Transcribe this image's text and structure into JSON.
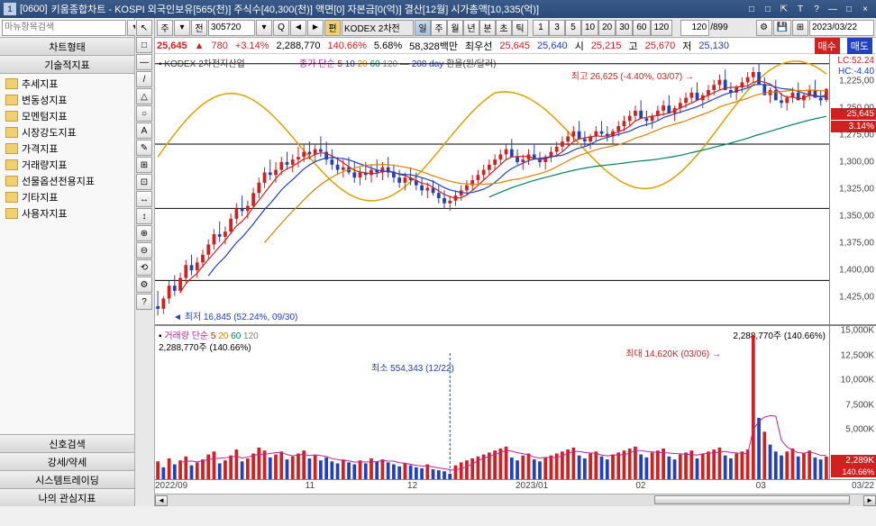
{
  "title": {
    "icon": "1",
    "code": "[0600]",
    "text": "키움종합차트 - KOSPI 외국인보유[565(천)] 주식수[40,300(천)] 액면[0] 자본금[0(억)] 결산[12월] 시가총액[10,335(억)]"
  },
  "wincontrols": [
    "□",
    "□",
    "⇱",
    "T",
    "?",
    "—",
    "□",
    "×"
  ],
  "sidebar": {
    "search_placeholder": "마뉴항목검색",
    "hdr1": "차트형태",
    "hdr2": "기술적지표",
    "items": [
      "추세지표",
      "변동성지표",
      "모멘텀지표",
      "시장강도지표",
      "가격지표",
      "거래량지표",
      "선물옵션전용지표",
      "기타지표",
      "사용자지표"
    ],
    "bottom": [
      "신호검색",
      "강세/약세",
      "시스템트레이딩",
      "나의 관심지표"
    ]
  },
  "toolbar": {
    "period": "주",
    "prev": "전",
    "code": "305720",
    "pt": "편",
    "name_short": "KODEX 2차전",
    "timeframes": [
      "일",
      "주",
      "월",
      "년",
      "분",
      "초",
      "틱"
    ],
    "tf_selected": 0,
    "ranges": [
      "1",
      "3",
      "5",
      "10",
      "20",
      "30",
      "60",
      "120"
    ],
    "count": "120",
    "total": "/899",
    "date": "2023/03/22"
  },
  "info": {
    "price": "25,645",
    "arrow": "▲",
    "change": "780",
    "pct": "+3.14%",
    "volume": "2,288,770",
    "ratio": "140.66%",
    "pct2": "5.68%",
    "amount": "58,328백만",
    "label_best": "최우선",
    "bid": "25,645",
    "ask": "25,640",
    "o_l": "시",
    "o": "25,215",
    "h_l": "고",
    "h": "25,670",
    "l_l": "저",
    "l": "25,130",
    "buy": "매수",
    "sell": "매도"
  },
  "main_chart": {
    "name": "KODEX 2차전지산업",
    "ma_label": "종가 단순",
    "ma": [
      "5",
      "10",
      "20",
      "60",
      "120"
    ],
    "ma_colors": [
      "#d02020",
      "#2040c0",
      "#e08000",
      "#008060",
      "#808080"
    ],
    "extra": "208 day",
    "extra2": "환율(원/달러)",
    "lc": "LC:52.24",
    "hc": "HC:-4.40",
    "ymin": 16500,
    "ymax": 27000,
    "yticks": [
      1225,
      1250,
      1275,
      1300,
      1325,
      1350,
      1375,
      1400,
      1425
    ],
    "ytick_scale": "1,000",
    "price_tag": "25,645",
    "pct_tag": "3.14%",
    "hlines": [
      26625,
      23500,
      21000,
      18200
    ],
    "hi_annot": "최고 26,625 (-4.40%, 03/07)",
    "lo_annot": "최저 16,845 (52.24%, 09/30)",
    "candles": {
      "dates_n": 120,
      "ohlc": [
        [
          17200,
          17800,
          16845,
          17100
        ],
        [
          17100,
          17600,
          16900,
          17500
        ],
        [
          17500,
          18200,
          17300,
          18000
        ],
        [
          18000,
          18400,
          17600,
          17800
        ],
        [
          17800,
          18500,
          17700,
          18300
        ],
        [
          18300,
          19000,
          18100,
          18800
        ],
        [
          18800,
          19200,
          18400,
          18600
        ],
        [
          18600,
          19100,
          18300,
          18900
        ],
        [
          18900,
          19400,
          18700,
          19200
        ],
        [
          19200,
          19800,
          19000,
          19600
        ],
        [
          19600,
          20200,
          19400,
          20000
        ],
        [
          20000,
          20500,
          19700,
          19900
        ],
        [
          19900,
          20300,
          19600,
          20100
        ],
        [
          20100,
          20800,
          20000,
          20600
        ],
        [
          20600,
          21200,
          20400,
          21000
        ],
        [
          21000,
          21500,
          20700,
          20900
        ],
        [
          20900,
          21300,
          20600,
          21100
        ],
        [
          21100,
          21800,
          21000,
          21600
        ],
        [
          21600,
          22200,
          21400,
          22000
        ],
        [
          22000,
          22600,
          21800,
          22400
        ],
        [
          22400,
          22900,
          22100,
          22300
        ],
        [
          22300,
          22800,
          22000,
          22500
        ],
        [
          22500,
          23000,
          22300,
          22800
        ],
        [
          22800,
          23200,
          22500,
          22700
        ],
        [
          22700,
          23100,
          22400,
          22900
        ],
        [
          22900,
          23400,
          22600,
          23000
        ],
        [
          23000,
          23500,
          22800,
          23200
        ],
        [
          23200,
          23600,
          22900,
          23100
        ],
        [
          23100,
          23500,
          22800,
          23300
        ],
        [
          23300,
          23800,
          23000,
          23200
        ],
        [
          23200,
          23600,
          22700,
          22900
        ],
        [
          22900,
          23300,
          22500,
          22700
        ],
        [
          22700,
          23000,
          22300,
          22500
        ],
        [
          22500,
          22900,
          22200,
          22600
        ],
        [
          22600,
          23000,
          22300,
          22400
        ],
        [
          22400,
          22800,
          22000,
          22200
        ],
        [
          22200,
          22600,
          21900,
          22400
        ],
        [
          22400,
          22800,
          22100,
          22300
        ],
        [
          22300,
          22700,
          22000,
          22500
        ],
        [
          22500,
          22900,
          22200,
          22400
        ],
        [
          22400,
          22800,
          22100,
          22600
        ],
        [
          22600,
          23000,
          22200,
          22400
        ],
        [
          22400,
          22700,
          22000,
          22200
        ],
        [
          22200,
          22500,
          21800,
          22000
        ],
        [
          22000,
          22400,
          21700,
          22200
        ],
        [
          22200,
          22600,
          21900,
          22100
        ],
        [
          22100,
          22400,
          21700,
          21900
        ],
        [
          21900,
          22200,
          21500,
          21700
        ],
        [
          21700,
          22000,
          21400,
          21800
        ],
        [
          21800,
          22100,
          21500,
          21600
        ],
        [
          21600,
          21900,
          21200,
          21400
        ],
        [
          21400,
          21700,
          21000,
          21200
        ],
        [
          21200,
          21500,
          20900,
          21300
        ],
        [
          21300,
          21700,
          21100,
          21500
        ],
        [
          21500,
          21900,
          21300,
          21700
        ],
        [
          21700,
          22100,
          21500,
          21900
        ],
        [
          21900,
          22300,
          21700,
          22100
        ],
        [
          22100,
          22500,
          21900,
          22300
        ],
        [
          22300,
          22700,
          22100,
          22500
        ],
        [
          22500,
          22900,
          22300,
          22700
        ],
        [
          22700,
          23100,
          22500,
          22900
        ],
        [
          22900,
          23300,
          22700,
          23100
        ],
        [
          23100,
          23500,
          22900,
          23300
        ],
        [
          23300,
          23700,
          23100,
          23000
        ],
        [
          23000,
          23300,
          22700,
          22800
        ],
        [
          22800,
          23100,
          22500,
          22900
        ],
        [
          22900,
          23300,
          22700,
          23100
        ],
        [
          23100,
          23500,
          22900,
          22900
        ],
        [
          22900,
          23200,
          22600,
          22800
        ],
        [
          22800,
          23100,
          22500,
          23000
        ],
        [
          23000,
          23400,
          22800,
          23200
        ],
        [
          23200,
          23600,
          23000,
          23400
        ],
        [
          23400,
          23800,
          23200,
          23600
        ],
        [
          23600,
          24000,
          23400,
          23800
        ],
        [
          23800,
          24200,
          23600,
          24000
        ],
        [
          24000,
          24400,
          23800,
          23700
        ],
        [
          23700,
          24000,
          23400,
          23600
        ],
        [
          23600,
          23900,
          23300,
          23800
        ],
        [
          23800,
          24200,
          23600,
          24000
        ],
        [
          24000,
          24400,
          23800,
          23900
        ],
        [
          23900,
          24200,
          23600,
          23800
        ],
        [
          23800,
          24100,
          23500,
          24000
        ],
        [
          24000,
          24400,
          23800,
          24200
        ],
        [
          24200,
          24600,
          24000,
          24400
        ],
        [
          24400,
          24800,
          24200,
          24600
        ],
        [
          24600,
          25000,
          24400,
          24800
        ],
        [
          24800,
          25200,
          24600,
          24500
        ],
        [
          24500,
          24800,
          24200,
          24400
        ],
        [
          24400,
          24700,
          24100,
          24600
        ],
        [
          24600,
          25000,
          24400,
          24800
        ],
        [
          24800,
          25200,
          24600,
          25000
        ],
        [
          25000,
          25400,
          24800,
          24700
        ],
        [
          24700,
          25000,
          24400,
          24900
        ],
        [
          24900,
          25300,
          24700,
          25100
        ],
        [
          25100,
          25500,
          24900,
          25300
        ],
        [
          25300,
          25700,
          25100,
          25500
        ],
        [
          25500,
          25900,
          25300,
          25200
        ],
        [
          25200,
          25500,
          24900,
          25400
        ],
        [
          25400,
          25800,
          25200,
          25600
        ],
        [
          25600,
          26000,
          25400,
          25800
        ],
        [
          25800,
          26200,
          25600,
          26000
        ],
        [
          26000,
          26400,
          25800,
          25600
        ],
        [
          25600,
          25900,
          25300,
          25500
        ],
        [
          25500,
          25800,
          25200,
          25700
        ],
        [
          25700,
          26100,
          25500,
          25900
        ],
        [
          25900,
          26300,
          25700,
          26100
        ],
        [
          26100,
          26500,
          25900,
          26300
        ],
        [
          26300,
          26625,
          26000,
          25800
        ],
        [
          25800,
          26100,
          25500,
          25400
        ],
        [
          25400,
          25700,
          25100,
          25600
        ],
        [
          25600,
          26000,
          25400,
          25200
        ],
        [
          25200,
          25500,
          24900,
          25100
        ],
        [
          25100,
          25400,
          24800,
          25300
        ],
        [
          25300,
          25700,
          25100,
          25500
        ],
        [
          25500,
          25900,
          25300,
          25200
        ],
        [
          25200,
          25500,
          24900,
          25400
        ],
        [
          25400,
          25800,
          25200,
          25600
        ],
        [
          25600,
          26000,
          25400,
          25300
        ],
        [
          25300,
          25600,
          25000,
          25200
        ],
        [
          25215,
          25670,
          25130,
          25645
        ]
      ]
    }
  },
  "vol_chart": {
    "label": "거래량",
    "ma_label": "단순",
    "ma": [
      "5",
      "20",
      "60",
      "120"
    ],
    "current": "2,288,770주 (140.66%)",
    "right": "2,288,770주 (140.66%)",
    "min_annot": "최소 554,343 (12/22)",
    "max_annot": "최대 14,620K (03/06)",
    "ymin": 0,
    "ymax": 15500000,
    "yticks": [
      "15,000K",
      "12,500K",
      "10,000K",
      "7,500K",
      "5,000K"
    ],
    "ytick_vals": [
      15000000,
      12500000,
      10000000,
      7500000,
      5000000
    ],
    "tag": "2,289K",
    "tag_pct": "140.66%",
    "bars": [
      [
        1800000,
        1
      ],
      [
        1200000,
        0
      ],
      [
        2100000,
        1
      ],
      [
        1500000,
        0
      ],
      [
        1900000,
        1
      ],
      [
        2300000,
        1
      ],
      [
        1400000,
        0
      ],
      [
        1700000,
        1
      ],
      [
        2000000,
        1
      ],
      [
        2500000,
        1
      ],
      [
        2800000,
        1
      ],
      [
        1600000,
        0
      ],
      [
        1900000,
        1
      ],
      [
        2400000,
        1
      ],
      [
        3000000,
        1
      ],
      [
        1800000,
        0
      ],
      [
        2100000,
        1
      ],
      [
        2600000,
        1
      ],
      [
        3200000,
        1
      ],
      [
        2900000,
        1
      ],
      [
        2200000,
        0
      ],
      [
        2500000,
        1
      ],
      [
        2800000,
        1
      ],
      [
        2000000,
        0
      ],
      [
        2300000,
        1
      ],
      [
        2600000,
        1
      ],
      [
        2900000,
        1
      ],
      [
        2100000,
        0
      ],
      [
        2400000,
        1
      ],
      [
        1900000,
        0
      ],
      [
        2200000,
        0
      ],
      [
        1800000,
        0
      ],
      [
        1600000,
        0
      ],
      [
        2000000,
        1
      ],
      [
        1700000,
        0
      ],
      [
        1500000,
        0
      ],
      [
        1900000,
        1
      ],
      [
        1600000,
        0
      ],
      [
        2100000,
        1
      ],
      [
        1800000,
        0
      ],
      [
        2000000,
        1
      ],
      [
        1700000,
        0
      ],
      [
        1500000,
        0
      ],
      [
        1300000,
        0
      ],
      [
        1600000,
        1
      ],
      [
        1400000,
        0
      ],
      [
        1200000,
        0
      ],
      [
        1100000,
        0
      ],
      [
        1500000,
        1
      ],
      [
        1000000,
        0
      ],
      [
        900000,
        0
      ],
      [
        800000,
        0
      ],
      [
        554343,
        0
      ],
      [
        1400000,
        1
      ],
      [
        1700000,
        1
      ],
      [
        1900000,
        1
      ],
      [
        2100000,
        1
      ],
      [
        2300000,
        1
      ],
      [
        2500000,
        1
      ],
      [
        2700000,
        1
      ],
      [
        2900000,
        1
      ],
      [
        3100000,
        1
      ],
      [
        3300000,
        1
      ],
      [
        2200000,
        0
      ],
      [
        1900000,
        0
      ],
      [
        2400000,
        1
      ],
      [
        2600000,
        1
      ],
      [
        2000000,
        0
      ],
      [
        1800000,
        0
      ],
      [
        2200000,
        1
      ],
      [
        2400000,
        1
      ],
      [
        2600000,
        1
      ],
      [
        2800000,
        1
      ],
      [
        3000000,
        1
      ],
      [
        3200000,
        1
      ],
      [
        2400000,
        0
      ],
      [
        2100000,
        0
      ],
      [
        2600000,
        1
      ],
      [
        2800000,
        1
      ],
      [
        2300000,
        0
      ],
      [
        2000000,
        0
      ],
      [
        2500000,
        1
      ],
      [
        2700000,
        1
      ],
      [
        2900000,
        1
      ],
      [
        3100000,
        1
      ],
      [
        3300000,
        1
      ],
      [
        2500000,
        0
      ],
      [
        2200000,
        0
      ],
      [
        2700000,
        1
      ],
      [
        2900000,
        1
      ],
      [
        3100000,
        1
      ],
      [
        2300000,
        0
      ],
      [
        2000000,
        0
      ],
      [
        2500000,
        1
      ],
      [
        2700000,
        1
      ],
      [
        2900000,
        1
      ],
      [
        2100000,
        0
      ],
      [
        2600000,
        1
      ],
      [
        2800000,
        1
      ],
      [
        3000000,
        1
      ],
      [
        3200000,
        1
      ],
      [
        2400000,
        0
      ],
      [
        2100000,
        0
      ],
      [
        2600000,
        1
      ],
      [
        2800000,
        1
      ],
      [
        3000000,
        1
      ],
      [
        14620000,
        1
      ],
      [
        6200000,
        0
      ],
      [
        4800000,
        1
      ],
      [
        3500000,
        0
      ],
      [
        2800000,
        0
      ],
      [
        2400000,
        0
      ],
      [
        2800000,
        1
      ],
      [
        3100000,
        1
      ],
      [
        2300000,
        0
      ],
      [
        2600000,
        1
      ],
      [
        2900000,
        1
      ],
      [
        2200000,
        0
      ],
      [
        2000000,
        0
      ],
      [
        2288770,
        1
      ]
    ]
  },
  "xaxis": {
    "ticks": [
      [
        "2022/09",
        0
      ],
      [
        "11",
        25
      ],
      [
        "12",
        42
      ],
      [
        "2023/01",
        60
      ],
      [
        "02",
        80
      ],
      [
        "03",
        100
      ]
    ],
    "right": "03/22"
  },
  "colors": {
    "up": "#d02020",
    "down": "#2040c0",
    "bg": "#ffffff",
    "grid": "#cccccc"
  }
}
